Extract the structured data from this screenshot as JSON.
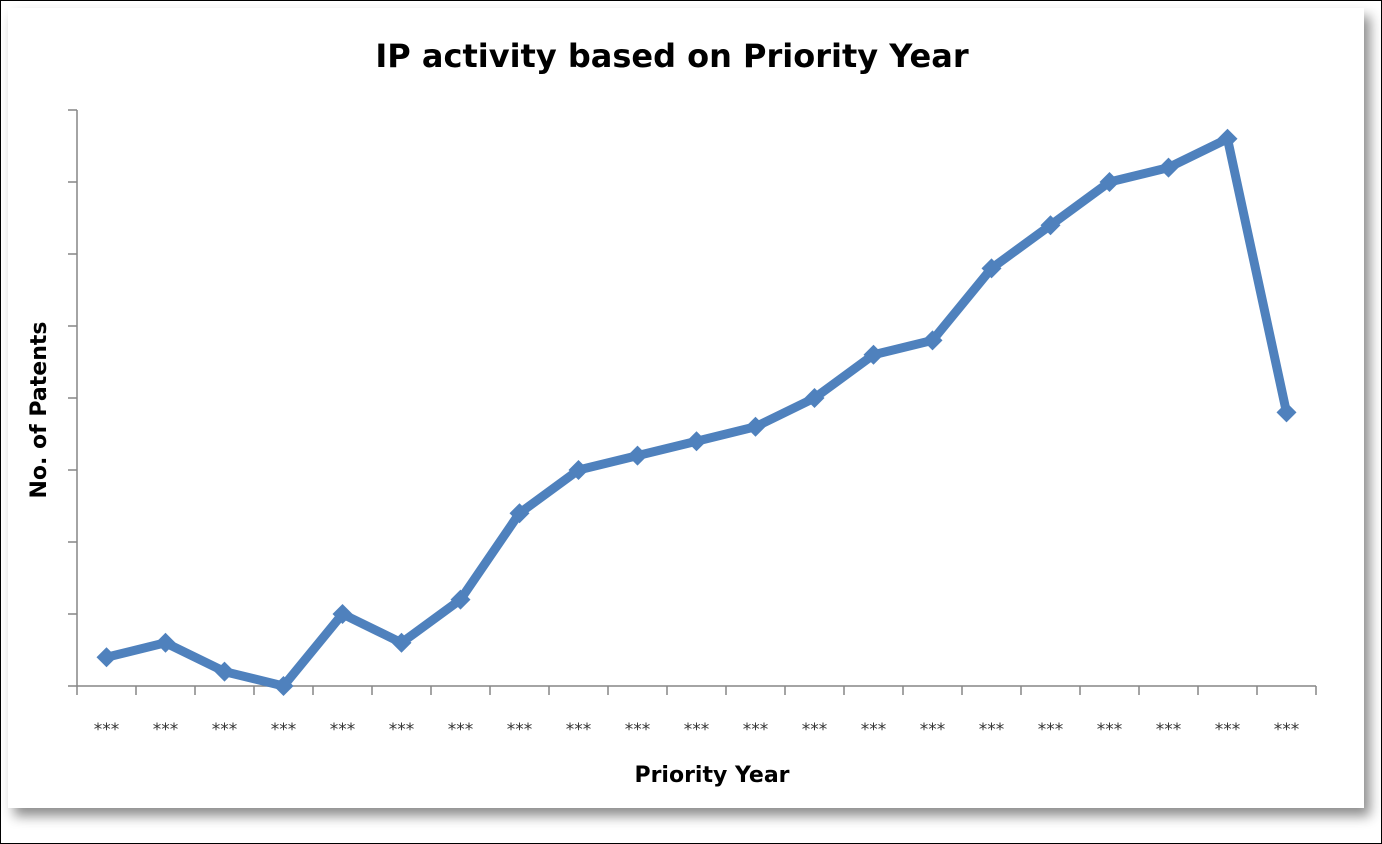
{
  "chart_data": {
    "type": "line",
    "title": "IP activity based on Priority Year",
    "x_label": "Priority Year",
    "y_label": "No. of Patents",
    "categories": [
      "***",
      "***",
      "***",
      "***",
      "***",
      "***",
      "***",
      "***",
      "***",
      "***",
      "***",
      "***",
      "***",
      "***",
      "***",
      "***",
      "***",
      "***",
      "***",
      "***",
      "***"
    ],
    "values": [
      0.4,
      0.6,
      0.2,
      0,
      1.0,
      0.6,
      1.2,
      2.4,
      3.0,
      3.2,
      3.4,
      3.6,
      4.0,
      4.6,
      4.8,
      5.8,
      6.4,
      7.0,
      7.2,
      7.6,
      3.8
    ],
    "color": "#4f81bd",
    "ylim": [
      0,
      8
    ],
    "yticks": [
      0,
      1,
      2,
      3,
      4,
      5,
      6,
      7,
      8
    ],
    "grid": false
  }
}
